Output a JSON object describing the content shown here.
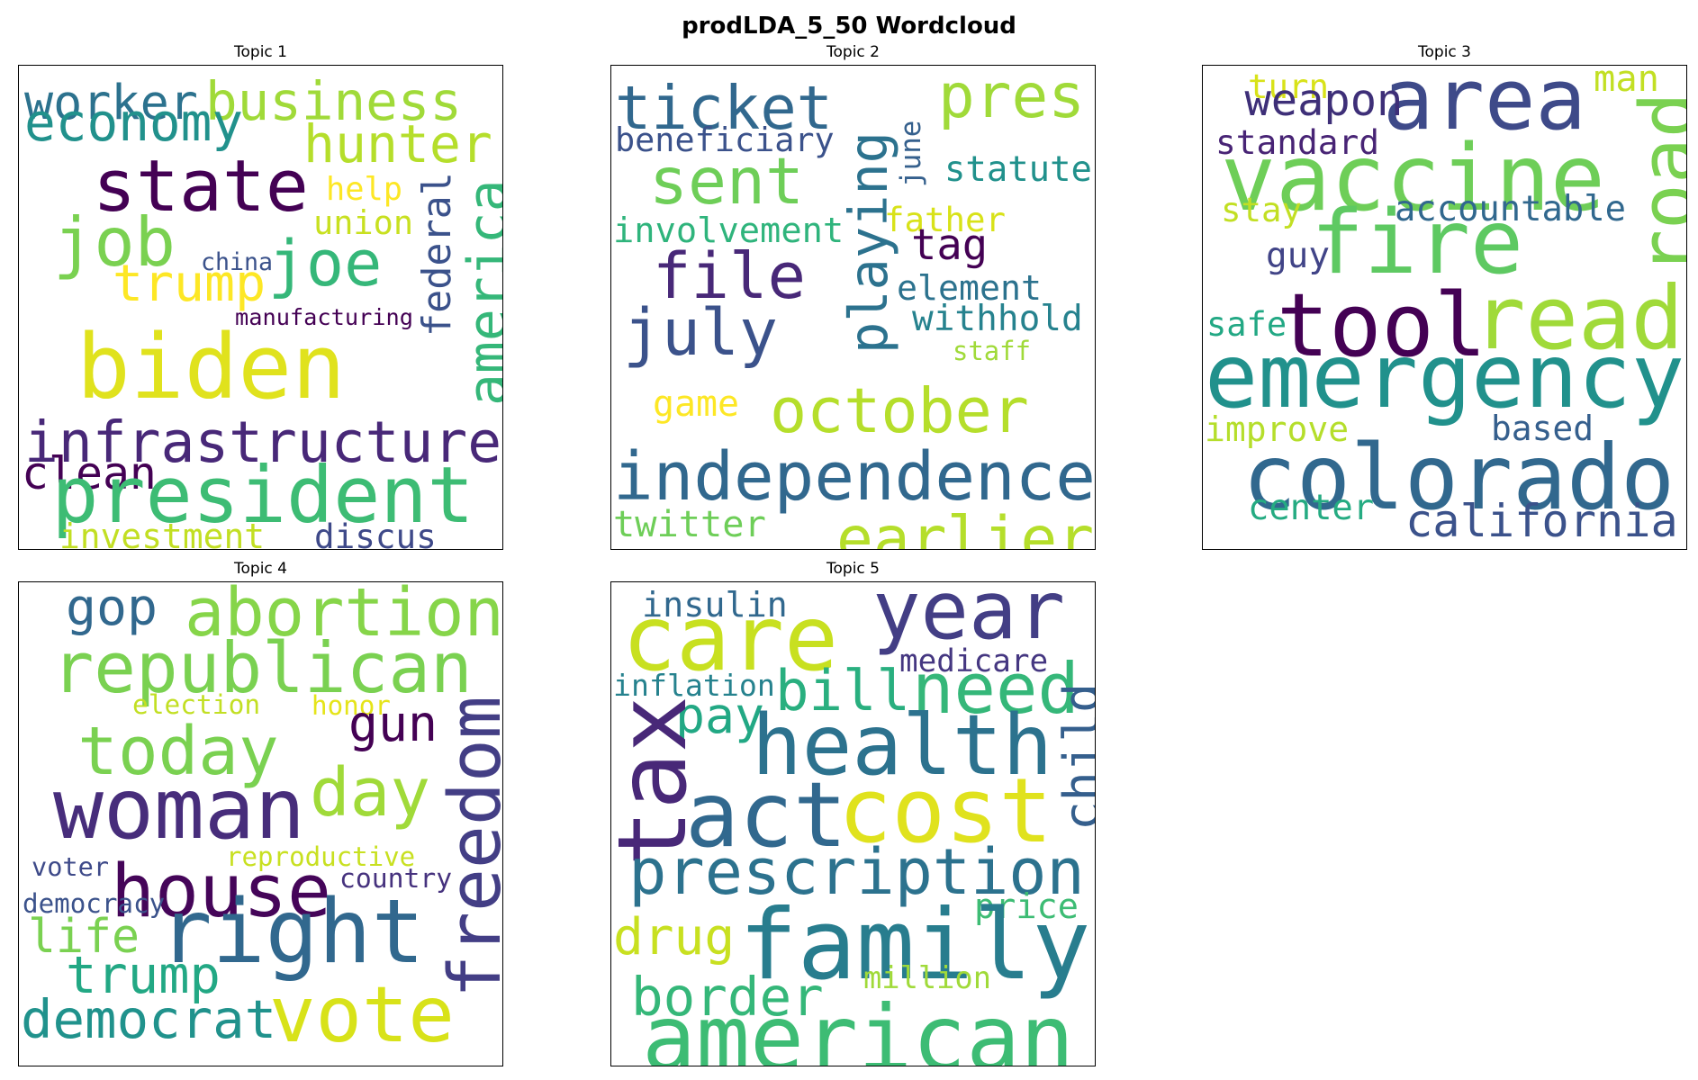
{
  "title": "prodLDA_5_50 Wordcloud",
  "chart_data": {
    "type": "wordcloud",
    "panels": [
      {
        "title": "Topic 1",
        "words": [
          {
            "text": "worker",
            "color": "#2c728e"
          },
          {
            "text": "business",
            "color": "#a0da39"
          },
          {
            "text": "economy",
            "color": "#21918c"
          },
          {
            "text": "hunter",
            "color": "#b5de2b"
          },
          {
            "text": "state",
            "color": "#440154"
          },
          {
            "text": "help",
            "color": "#fde725"
          },
          {
            "text": "union",
            "color": "#c8e020"
          },
          {
            "text": "job",
            "color": "#7ad151"
          },
          {
            "text": "china",
            "color": "#3b528b"
          },
          {
            "text": "joe",
            "color": "#35b779"
          },
          {
            "text": "trump",
            "color": "#fde725"
          },
          {
            "text": "federal",
            "color": "#3b528b"
          },
          {
            "text": "america",
            "color": "#35b779"
          },
          {
            "text": "manufacturing",
            "color": "#440154"
          },
          {
            "text": "biden",
            "color": "#e0e21d"
          },
          {
            "text": "infrastructure",
            "color": "#482878"
          },
          {
            "text": "clean",
            "color": "#440154"
          },
          {
            "text": "president",
            "color": "#3dbc74"
          },
          {
            "text": "investment",
            "color": "#c2df23"
          },
          {
            "text": "discus",
            "color": "#3e4989"
          }
        ]
      },
      {
        "title": "Topic 2",
        "words": [
          {
            "text": "ticket",
            "color": "#31688e"
          },
          {
            "text": "pres",
            "color": "#a0da39"
          },
          {
            "text": "beneficiary",
            "color": "#3b528b"
          },
          {
            "text": "june",
            "color": "#35608d"
          },
          {
            "text": "sent",
            "color": "#6ece58"
          },
          {
            "text": "playing",
            "color": "#2c728e"
          },
          {
            "text": "statute",
            "color": "#21918c"
          },
          {
            "text": "involvement",
            "color": "#2fb47c"
          },
          {
            "text": "father",
            "color": "#d8e219"
          },
          {
            "text": "file",
            "color": "#482878"
          },
          {
            "text": "tag",
            "color": "#440154"
          },
          {
            "text": "element",
            "color": "#2c728e"
          },
          {
            "text": "july",
            "color": "#3b528b"
          },
          {
            "text": "withhold",
            "color": "#26828e"
          },
          {
            "text": "staff",
            "color": "#a0da39"
          },
          {
            "text": "game",
            "color": "#fde725"
          },
          {
            "text": "october",
            "color": "#b5de2b"
          },
          {
            "text": "independence",
            "color": "#31688e"
          },
          {
            "text": "twitter",
            "color": "#6ece58"
          },
          {
            "text": "earlier",
            "color": "#b5de2b"
          }
        ]
      },
      {
        "title": "Topic 3",
        "words": [
          {
            "text": "turn",
            "color": "#d8e219"
          },
          {
            "text": "area",
            "color": "#3e4a89"
          },
          {
            "text": "man",
            "color": "#c2df23"
          },
          {
            "text": "weapon",
            "color": "#3e2f78"
          },
          {
            "text": "road",
            "color": "#7ad151"
          },
          {
            "text": "standard",
            "color": "#482475"
          },
          {
            "text": "vaccine",
            "color": "#6ece58"
          },
          {
            "text": "stay",
            "color": "#c2df23"
          },
          {
            "text": "accountable",
            "color": "#31688e"
          },
          {
            "text": "fire",
            "color": "#5ec962"
          },
          {
            "text": "guy",
            "color": "#414487"
          },
          {
            "text": "read",
            "color": "#a0da39"
          },
          {
            "text": "tool",
            "color": "#440154"
          },
          {
            "text": "safe",
            "color": "#22a884"
          },
          {
            "text": "emergency",
            "color": "#21918c"
          },
          {
            "text": "improve",
            "color": "#b5de2b"
          },
          {
            "text": "based",
            "color": "#355f8d"
          },
          {
            "text": "colorado",
            "color": "#31688e"
          },
          {
            "text": "center",
            "color": "#25ab82"
          },
          {
            "text": "california",
            "color": "#3b528b"
          }
        ]
      },
      {
        "title": "Topic 4",
        "words": [
          {
            "text": "gop",
            "color": "#31688e"
          },
          {
            "text": "abortion",
            "color": "#86d549"
          },
          {
            "text": "republican",
            "color": "#7ad151"
          },
          {
            "text": "election",
            "color": "#c2df23"
          },
          {
            "text": "honor",
            "color": "#e5e419"
          },
          {
            "text": "gun",
            "color": "#440154"
          },
          {
            "text": "today",
            "color": "#7ad151"
          },
          {
            "text": "freedom",
            "color": "#433e85"
          },
          {
            "text": "day",
            "color": "#a0da39"
          },
          {
            "text": "woman",
            "color": "#472d7b"
          },
          {
            "text": "reproductive",
            "color": "#c8e020"
          },
          {
            "text": "voter",
            "color": "#3e4a89"
          },
          {
            "text": "house",
            "color": "#450559"
          },
          {
            "text": "country",
            "color": "#46327e"
          },
          {
            "text": "democracy",
            "color": "#3b528b"
          },
          {
            "text": "right",
            "color": "#31688e"
          },
          {
            "text": "life",
            "color": "#7ad151"
          },
          {
            "text": "trump",
            "color": "#22a884"
          },
          {
            "text": "democrat",
            "color": "#20928c"
          },
          {
            "text": "vote",
            "color": "#d8e219"
          }
        ]
      },
      {
        "title": "Topic 5",
        "words": [
          {
            "text": "insulin",
            "color": "#31688e"
          },
          {
            "text": "year",
            "color": "#433e85"
          },
          {
            "text": "care",
            "color": "#c8e020"
          },
          {
            "text": "medicare",
            "color": "#453781"
          },
          {
            "text": "inflation",
            "color": "#26828e"
          },
          {
            "text": "need",
            "color": "#35b779"
          },
          {
            "text": "bill",
            "color": "#29af7f"
          },
          {
            "text": "child",
            "color": "#355f8d"
          },
          {
            "text": "pay",
            "color": "#22a884"
          },
          {
            "text": "tax",
            "color": "#482878"
          },
          {
            "text": "health",
            "color": "#2c728e"
          },
          {
            "text": "act",
            "color": "#31688e"
          },
          {
            "text": "cost",
            "color": "#e0e21d"
          },
          {
            "text": "prescription",
            "color": "#2c728e"
          },
          {
            "text": "price",
            "color": "#3dbc74"
          },
          {
            "text": "drug",
            "color": "#c8e020"
          },
          {
            "text": "family",
            "color": "#287d8e"
          },
          {
            "text": "million",
            "color": "#a0da39"
          },
          {
            "text": "border",
            "color": "#35b779"
          },
          {
            "text": "american",
            "color": "#3dbc74"
          }
        ]
      }
    ]
  }
}
